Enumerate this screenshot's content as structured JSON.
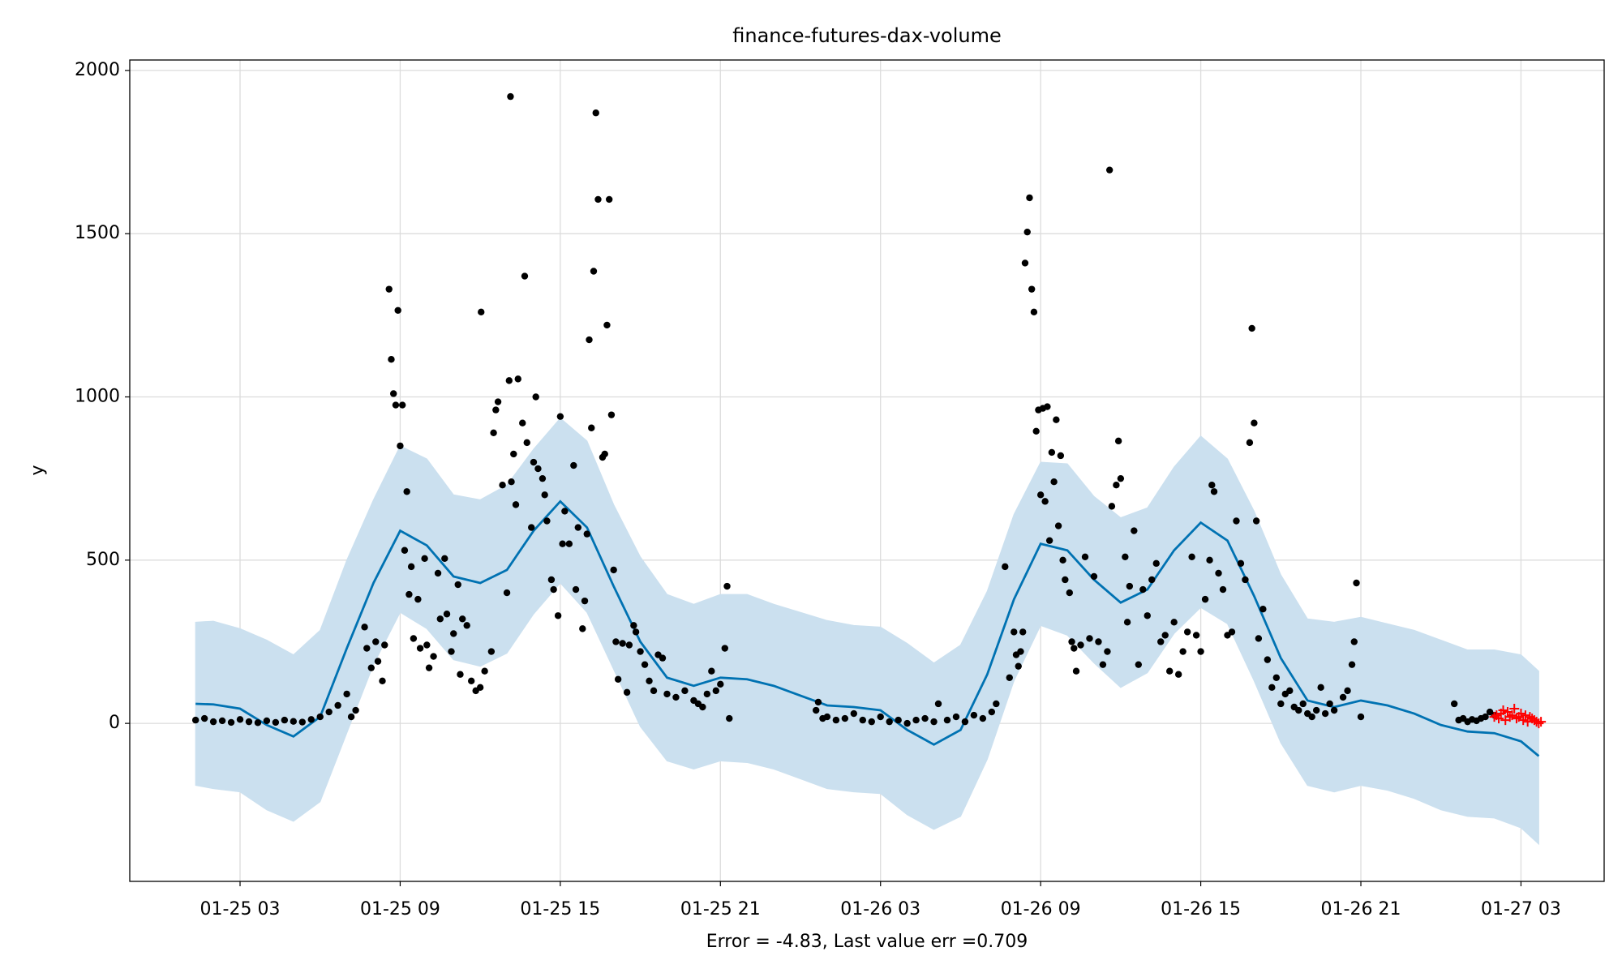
{
  "chart_data": {
    "type": "forecast",
    "title": "finance-futures-dax-volume",
    "y_label": "y",
    "x_label": "Error = -4.83, Last value err =0.709",
    "xlim": [
      "01-24 22:52",
      "01-27 06:07"
    ],
    "xticks": [
      "01-25 03",
      "01-25 09",
      "01-25 15",
      "01-25 21",
      "01-26 03",
      "01-26 09",
      "01-26 15",
      "01-26 21",
      "01-27 03"
    ],
    "ylim": [
      -484,
      2032
    ],
    "yticks": [
      0,
      500,
      1000,
      1500,
      2000
    ],
    "grid": true,
    "series": [
      {
        "kind": "forecast",
        "color": "#0072b2",
        "band_color": "#cbe0ef",
        "x": [
          "01-25 01:20",
          "01-25 02:00",
          "01-25 03:00",
          "01-25 04:00",
          "01-25 05:00",
          "01-25 06:00",
          "01-25 07:00",
          "01-25 08:00",
          "01-25 09:00",
          "01-25 10:00",
          "01-25 11:00",
          "01-25 12:00",
          "01-25 13:00",
          "01-25 14:00",
          "01-25 15:00",
          "01-25 16:00",
          "01-25 17:00",
          "01-25 18:00",
          "01-25 19:00",
          "01-25 20:00",
          "01-25 21:00",
          "01-25 22:00",
          "01-25 23:00",
          "01-26 00:00",
          "01-26 01:00",
          "01-26 02:00",
          "01-26 03:00",
          "01-26 04:00",
          "01-26 05:00",
          "01-26 06:00",
          "01-26 07:00",
          "01-26 08:00",
          "01-26 09:00",
          "01-26 10:00",
          "01-26 11:00",
          "01-26 12:00",
          "01-26 13:00",
          "01-26 14:00",
          "01-26 15:00",
          "01-26 16:00",
          "01-26 17:00",
          "01-26 18:00",
          "01-26 19:00",
          "01-26 20:00",
          "01-26 21:00",
          "01-26 22:00",
          "01-26 23:00",
          "01-27 00:00",
          "01-27 01:00",
          "01-27 02:00",
          "01-27 03:00",
          "01-27 03:40"
        ],
        "values": [
          60,
          58,
          45,
          -5,
          -40,
          20,
          230,
          430,
          590,
          545,
          450,
          430,
          470,
          590,
          680,
          600,
          420,
          250,
          140,
          115,
          140,
          135,
          115,
          85,
          55,
          50,
          40,
          -20,
          -65,
          -20,
          150,
          380,
          550,
          530,
          440,
          370,
          410,
          530,
          615,
          560,
          390,
          200,
          70,
          50,
          70,
          55,
          30,
          -5,
          -25,
          -30,
          -55,
          -100
        ],
        "upper": [
          310,
          313,
          290,
          255,
          210,
          285,
          500,
          685,
          850,
          810,
          700,
          685,
          730,
          840,
          935,
          865,
          670,
          510,
          395,
          365,
          395,
          395,
          365,
          340,
          315,
          300,
          295,
          245,
          185,
          240,
          405,
          640,
          800,
          795,
          695,
          630,
          660,
          785,
          880,
          810,
          650,
          455,
          320,
          310,
          325,
          305,
          285,
          255,
          225,
          225,
          210,
          160
        ],
        "lower": [
          -190,
          -200,
          -210,
          -265,
          -300,
          -240,
          -30,
          180,
          340,
          290,
          195,
          175,
          215,
          335,
          430,
          340,
          165,
          -10,
          -115,
          -140,
          -115,
          -120,
          -140,
          -170,
          -200,
          -210,
          -215,
          -280,
          -325,
          -285,
          -110,
          130,
          300,
          270,
          185,
          110,
          155,
          275,
          355,
          305,
          130,
          -60,
          -190,
          -210,
          -190,
          -205,
          -230,
          -265,
          -285,
          -290,
          -320,
          -370
        ]
      },
      {
        "kind": "dots",
        "color": "#000000",
        "x": [
          "01-25 01:20",
          "01-25 01:40",
          "01-25 02:00",
          "01-25 02:20",
          "01-25 02:40",
          "01-25 03:00",
          "01-25 03:20",
          "01-25 03:40",
          "01-25 04:00",
          "01-25 04:20",
          "01-25 04:40",
          "01-25 05:00",
          "01-25 05:20",
          "01-25 05:40",
          "01-25 06:00",
          "01-25 06:20",
          "01-25 06:40",
          "01-25 07:00",
          "01-25 07:10",
          "01-25 07:20",
          "01-25 07:40",
          "01-25 07:45",
          "01-25 07:55",
          "01-25 08:05",
          "01-25 08:10",
          "01-25 08:20",
          "01-25 08:25",
          "01-25 08:35",
          "01-25 08:40",
          "01-25 08:45",
          "01-25 08:50",
          "01-25 08:55",
          "01-25 09:00",
          "01-25 09:05",
          "01-25 09:10",
          "01-25 09:15",
          "01-25 09:20",
          "01-25 09:25",
          "01-25 09:30",
          "01-25 09:40",
          "01-25 09:45",
          "01-25 09:55",
          "01-25 10:00",
          "01-25 10:05",
          "01-25 10:15",
          "01-25 10:25",
          "01-25 10:30",
          "01-25 10:40",
          "01-25 10:45",
          "01-25 10:55",
          "01-25 11:00",
          "01-25 11:10",
          "01-25 11:15",
          "01-25 11:20",
          "01-25 11:30",
          "01-25 11:40",
          "01-25 11:50",
          "01-25 12:00",
          "01-25 12:02",
          "01-25 12:10",
          "01-25 12:25",
          "01-25 12:30",
          "01-25 12:35",
          "01-25 12:40",
          "01-25 12:50",
          "01-25 13:00",
          "01-25 13:05",
          "01-25 13:08",
          "01-25 13:10",
          "01-25 13:15",
          "01-25 13:20",
          "01-25 13:25",
          "01-25 13:35",
          "01-25 13:40",
          "01-25 13:45",
          "01-25 13:55",
          "01-25 14:00",
          "01-25 14:05",
          "01-25 14:10",
          "01-25 14:20",
          "01-25 14:25",
          "01-25 14:30",
          "01-25 14:40",
          "01-25 14:45",
          "01-25 14:55",
          "01-25 15:00",
          "01-25 15:05",
          "01-25 15:10",
          "01-25 15:20",
          "01-25 15:30",
          "01-25 15:35",
          "01-25 15:40",
          "01-25 15:50",
          "01-25 15:55",
          "01-25 16:00",
          "01-25 16:05",
          "01-25 16:10",
          "01-25 16:15",
          "01-25 16:20",
          "01-25 16:25",
          "01-25 16:35",
          "01-25 16:40",
          "01-25 16:45",
          "01-25 16:50",
          "01-25 16:55",
          "01-25 17:00",
          "01-25 17:05",
          "01-25 17:10",
          "01-25 17:20",
          "01-25 17:30",
          "01-25 17:35",
          "01-25 17:45",
          "01-25 17:50",
          "01-25 18:00",
          "01-25 18:10",
          "01-25 18:20",
          "01-25 18:30",
          "01-25 18:40",
          "01-25 18:50",
          "01-25 19:00",
          "01-25 19:20",
          "01-25 19:40",
          "01-25 20:00",
          "01-25 20:10",
          "01-25 20:20",
          "01-25 20:30",
          "01-25 20:40",
          "01-25 20:50",
          "01-25 21:00",
          "01-25 21:10",
          "01-25 21:15",
          "01-25 21:20",
          "01-26 00:35",
          "01-26 00:40",
          "01-26 00:50",
          "01-26 01:00",
          "01-26 01:20",
          "01-26 01:40",
          "01-26 02:00",
          "01-26 02:20",
          "01-26 02:40",
          "01-26 03:00",
          "01-26 03:20",
          "01-26 03:40",
          "01-26 04:00",
          "01-26 04:20",
          "01-26 04:40",
          "01-26 05:00",
          "01-26 05:10",
          "01-26 05:30",
          "01-26 05:50",
          "01-26 06:10",
          "01-26 06:30",
          "01-26 06:50",
          "01-26 07:10",
          "01-26 07:20",
          "01-26 07:40",
          "01-26 07:50",
          "01-26 08:00",
          "01-26 08:05",
          "01-26 08:10",
          "01-26 08:15",
          "01-26 08:20",
          "01-26 08:25",
          "01-26 08:30",
          "01-26 08:35",
          "01-26 08:40",
          "01-26 08:45",
          "01-26 08:50",
          "01-26 08:55",
          "01-26 09:00",
          "01-26 09:05",
          "01-26 09:10",
          "01-26 09:15",
          "01-26 09:20",
          "01-26 09:25",
          "01-26 09:30",
          "01-26 09:35",
          "01-26 09:40",
          "01-26 09:45",
          "01-26 09:50",
          "01-26 09:55",
          "01-26 10:05",
          "01-26 10:10",
          "01-26 10:15",
          "01-26 10:20",
          "01-26 10:30",
          "01-26 10:40",
          "01-26 10:50",
          "01-26 11:00",
          "01-26 11:10",
          "01-26 11:20",
          "01-26 11:30",
          "01-26 11:35",
          "01-26 11:40",
          "01-26 11:50",
          "01-26 11:55",
          "01-26 12:00",
          "01-26 12:10",
          "01-26 12:15",
          "01-26 12:20",
          "01-26 12:30",
          "01-26 12:40",
          "01-26 12:50",
          "01-26 13:00",
          "01-26 13:10",
          "01-26 13:20",
          "01-26 13:30",
          "01-26 13:40",
          "01-26 13:50",
          "01-26 14:00",
          "01-26 14:10",
          "01-26 14:20",
          "01-26 14:30",
          "01-26 14:40",
          "01-26 14:50",
          "01-26 15:00",
          "01-26 15:10",
          "01-26 15:20",
          "01-26 15:25",
          "01-26 15:30",
          "01-26 15:40",
          "01-26 15:50",
          "01-26 16:00",
          "01-26 16:10",
          "01-26 16:20",
          "01-26 16:30",
          "01-26 16:40",
          "01-26 16:50",
          "01-26 16:55",
          "01-26 17:00",
          "01-26 17:05",
          "01-26 17:10",
          "01-26 17:20",
          "01-26 17:30",
          "01-26 17:40",
          "01-26 17:50",
          "01-26 18:00",
          "01-26 18:10",
          "01-26 18:20",
          "01-26 18:30",
          "01-26 18:40",
          "01-26 18:50",
          "01-26 19:00",
          "01-26 19:10",
          "01-26 19:20",
          "01-26 19:30",
          "01-26 19:40",
          "01-26 19:50",
          "01-26 20:00",
          "01-26 20:20",
          "01-26 20:30",
          "01-26 20:40",
          "01-26 20:45",
          "01-26 20:50",
          "01-26 21:00",
          "01-27 00:30",
          "01-27 00:40",
          "01-27 00:50",
          "01-27 01:00",
          "01-27 01:10",
          "01-27 01:20",
          "01-27 01:30",
          "01-27 01:40",
          "01-27 01:50",
          "01-27 02:00"
        ],
        "values": [
          10,
          15,
          5,
          8,
          3,
          12,
          5,
          2,
          8,
          3,
          10,
          6,
          4,
          12,
          20,
          35,
          55,
          90,
          20,
          40,
          295,
          230,
          170,
          250,
          190,
          130,
          240,
          1330,
          1115,
          1010,
          975,
          1265,
          850,
          975,
          530,
          710,
          395,
          480,
          260,
          380,
          230,
          505,
          240,
          170,
          205,
          460,
          320,
          505,
          335,
          220,
          275,
          425,
          150,
          320,
          300,
          130,
          100,
          110,
          1260,
          160,
          220,
          890,
          960,
          985,
          730,
          400,
          1050,
          1920,
          740,
          825,
          670,
          1055,
          920,
          1370,
          860,
          600,
          800,
          1000,
          780,
          750,
          700,
          620,
          440,
          410,
          330,
          940,
          550,
          650,
          550,
          790,
          410,
          600,
          290,
          375,
          580,
          1175,
          905,
          1385,
          1870,
          1605,
          815,
          825,
          1220,
          1605,
          945,
          470,
          250,
          135,
          245,
          95,
          240,
          300,
          280,
          220,
          180,
          130,
          100,
          210,
          200,
          90,
          80,
          100,
          70,
          60,
          50,
          90,
          160,
          100,
          120,
          230,
          420,
          15,
          40,
          65,
          15,
          20,
          10,
          15,
          30,
          10,
          5,
          20,
          5,
          10,
          0,
          10,
          15,
          5,
          60,
          10,
          20,
          5,
          25,
          15,
          35,
          60,
          480,
          140,
          280,
          210,
          175,
          220,
          280,
          1410,
          1505,
          1610,
          1330,
          1260,
          895,
          960,
          700,
          965,
          680,
          970,
          560,
          830,
          740,
          930,
          605,
          820,
          500,
          440,
          400,
          250,
          230,
          160,
          240,
          510,
          260,
          450,
          250,
          180,
          220,
          1695,
          665,
          730,
          865,
          750,
          510,
          310,
          420,
          590,
          180,
          410,
          330,
          440,
          490,
          250,
          270,
          160,
          310,
          150,
          220,
          280,
          510,
          270,
          220,
          380,
          500,
          730,
          710,
          460,
          410,
          270,
          280,
          620,
          490,
          440,
          860,
          1210,
          920,
          620,
          260,
          350,
          195,
          110,
          140,
          60,
          90,
          100,
          50,
          40,
          60,
          30,
          20,
          40,
          110,
          30,
          60,
          40,
          80,
          100,
          180,
          250,
          430,
          20,
          60,
          10,
          15,
          5,
          12,
          8,
          15,
          20,
          35,
          25
        ]
      },
      {
        "kind": "plus",
        "color": "#ff0000",
        "x": [
          "01-27 02:00",
          "01-27 02:05",
          "01-27 02:10",
          "01-27 02:15",
          "01-27 02:20",
          "01-27 02:25",
          "01-27 02:30",
          "01-27 02:35",
          "01-27 02:40",
          "01-27 02:45",
          "01-27 02:50",
          "01-27 02:55",
          "01-27 03:00",
          "01-27 03:05",
          "01-27 03:10",
          "01-27 03:15",
          "01-27 03:20",
          "01-27 03:25",
          "01-27 03:30",
          "01-27 03:35",
          "01-27 03:40",
          "01-27 03:45"
        ],
        "values": [
          20,
          25,
          15,
          30,
          40,
          10,
          35,
          20,
          25,
          45,
          15,
          20,
          30,
          10,
          25,
          5,
          20,
          15,
          10,
          5,
          0,
          5
        ]
      }
    ]
  }
}
